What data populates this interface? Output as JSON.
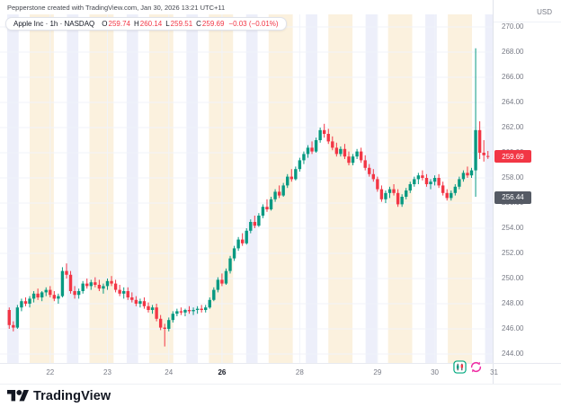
{
  "header": {
    "attribution": "Pepperstone created with TradingView.com, Jan 30, 2026 13:21 UTC+11"
  },
  "legend": {
    "title": "Apple Inc · 1h · NASDAQ",
    "ohlc": [
      {
        "label": "O",
        "value": "259.74"
      },
      {
        "label": "H",
        "value": "260.14"
      },
      {
        "label": "L",
        "value": "259.51"
      },
      {
        "label": "C",
        "value": "259.69"
      }
    ],
    "change": "−0.03 (−0.01%)"
  },
  "price_axis": {
    "currency": "USD",
    "labels": [
      "270.00",
      "268.00",
      "266.00",
      "264.00",
      "262.00",
      "260.00",
      "258.00",
      "256.00",
      "254.00",
      "252.00",
      "250.00",
      "248.00",
      "246.00",
      "244.00"
    ],
    "last_price_badge": {
      "text": "259.69",
      "bg": "#f23645"
    },
    "secondary_badge": {
      "text": "256.44",
      "bg": "#555a64"
    }
  },
  "time_axis": {
    "labels": [
      {
        "text": "22",
        "bar": 10
      },
      {
        "text": "23",
        "bar": 24
      },
      {
        "text": "24",
        "bar": 39
      },
      {
        "text": "26",
        "bar": 52,
        "bold": true
      },
      {
        "text": "28",
        "bar": 71
      },
      {
        "text": "29",
        "bar": 90
      },
      {
        "text": "30",
        "bar": 104
      },
      {
        "text": "31",
        "bar": 118.5
      }
    ]
  },
  "footer": {
    "brand": "TradingView"
  },
  "icons": {
    "logo": "tradingview-logo",
    "left_button": "candlestick-chart-icon",
    "right_button": "refresh-icon"
  },
  "chart_data": {
    "type": "candlestick",
    "symbol": "Apple Inc",
    "exchange": "NASDAQ",
    "interval": "1h",
    "currency": "USD",
    "title": "Apple Inc · 1h · NASDAQ",
    "last_close": 259.69,
    "change": "−0.03 (−0.01%)",
    "y_axis": {
      "min": 244,
      "max": 270,
      "step": 2
    },
    "colors": {
      "up": "#089981",
      "down": "#f23645",
      "grid": "#f0f3fa"
    },
    "sessions": {
      "count": 9,
      "period": 14.6,
      "bands": [
        {
          "name": "premarket",
          "offset": 0,
          "width": 2.8,
          "color": "#edeffa"
        },
        {
          "name": "postmarket",
          "offset": 5.5,
          "width": 5.9,
          "color": "#fbf1de"
        }
      ]
    },
    "candles": [
      [
        247.5,
        247.7,
        246.0,
        246.3
      ],
      [
        246.3,
        246.6,
        245.8,
        246.1
      ],
      [
        246.1,
        247.9,
        246.0,
        247.7
      ],
      [
        247.7,
        248.4,
        247.4,
        248.2
      ],
      [
        248.2,
        248.5,
        247.8,
        248.0
      ],
      [
        248.0,
        248.6,
        247.7,
        248.4
      ],
      [
        248.4,
        249.0,
        248.1,
        248.8
      ],
      [
        248.8,
        249.2,
        248.3,
        248.5
      ],
      [
        248.5,
        249.0,
        248.2,
        248.9
      ],
      [
        248.9,
        249.3,
        248.6,
        249.1
      ],
      [
        249.1,
        249.4,
        248.5,
        248.7
      ],
      [
        248.7,
        249.0,
        248.2,
        248.4
      ],
      [
        248.4,
        248.8,
        248.0,
        248.6
      ],
      [
        248.6,
        250.9,
        248.5,
        250.6
      ],
      [
        250.6,
        251.2,
        250.0,
        250.3
      ],
      [
        250.3,
        250.6,
        248.8,
        249.0
      ],
      [
        249.0,
        249.4,
        248.4,
        248.7
      ],
      [
        248.7,
        249.2,
        248.4,
        249.0
      ],
      [
        249.0,
        249.8,
        248.8,
        249.6
      ],
      [
        249.6,
        250.0,
        249.2,
        249.4
      ],
      [
        249.4,
        249.9,
        249.1,
        249.7
      ],
      [
        249.7,
        250.1,
        249.3,
        249.5
      ],
      [
        249.5,
        249.9,
        249.0,
        249.2
      ],
      [
        249.2,
        249.6,
        248.8,
        249.4
      ],
      [
        249.4,
        250.0,
        249.1,
        249.8
      ],
      [
        249.8,
        250.2,
        249.4,
        249.6
      ],
      [
        249.6,
        249.9,
        248.9,
        249.1
      ],
      [
        249.1,
        249.5,
        248.6,
        248.8
      ],
      [
        248.8,
        249.3,
        248.4,
        249.0
      ],
      [
        249.0,
        249.3,
        248.3,
        248.5
      ],
      [
        248.5,
        248.9,
        248.1,
        248.3
      ],
      [
        248.3,
        248.6,
        247.8,
        248.0
      ],
      [
        248.0,
        248.4,
        247.7,
        248.2
      ],
      [
        248.2,
        248.5,
        247.6,
        247.8
      ],
      [
        247.8,
        248.1,
        247.3,
        247.5
      ],
      [
        247.5,
        247.9,
        247.2,
        247.7
      ],
      [
        247.7,
        248.0,
        246.6,
        246.8
      ],
      [
        246.8,
        247.1,
        245.9,
        246.1
      ],
      [
        246.1,
        246.4,
        244.6,
        246.0
      ],
      [
        246.0,
        246.9,
        245.8,
        246.7
      ],
      [
        246.7,
        247.4,
        246.5,
        247.2
      ],
      [
        247.2,
        247.6,
        247.0,
        247.4
      ],
      [
        247.4,
        247.7,
        247.1,
        247.3
      ],
      [
        247.3,
        247.6,
        247.0,
        247.5
      ],
      [
        247.5,
        247.8,
        247.2,
        247.4
      ],
      [
        247.4,
        247.7,
        247.1,
        247.5
      ],
      [
        247.5,
        247.8,
        247.2,
        247.6
      ],
      [
        247.6,
        247.9,
        247.3,
        247.5
      ],
      [
        247.5,
        247.9,
        247.3,
        247.7
      ],
      [
        247.7,
        248.5,
        247.6,
        248.3
      ],
      [
        248.3,
        249.3,
        248.2,
        249.1
      ],
      [
        249.1,
        250.1,
        248.9,
        249.9
      ],
      [
        249.9,
        250.4,
        249.4,
        249.6
      ],
      [
        249.6,
        250.8,
        249.5,
        250.6
      ],
      [
        250.6,
        251.8,
        250.4,
        251.6
      ],
      [
        251.6,
        252.6,
        251.4,
        252.4
      ],
      [
        252.4,
        253.3,
        252.2,
        253.1
      ],
      [
        253.1,
        253.6,
        252.6,
        252.8
      ],
      [
        252.8,
        254.0,
        252.7,
        253.8
      ],
      [
        253.8,
        254.7,
        253.6,
        254.5
      ],
      [
        254.5,
        255.0,
        254.0,
        254.2
      ],
      [
        254.2,
        255.2,
        254.1,
        255.0
      ],
      [
        255.0,
        255.9,
        254.8,
        255.7
      ],
      [
        255.7,
        256.3,
        255.3,
        255.5
      ],
      [
        255.5,
        256.5,
        255.4,
        256.3
      ],
      [
        256.3,
        257.1,
        256.1,
        256.9
      ],
      [
        256.9,
        257.4,
        256.4,
        256.6
      ],
      [
        256.6,
        257.6,
        256.5,
        257.4
      ],
      [
        257.4,
        258.3,
        257.2,
        258.1
      ],
      [
        258.1,
        258.7,
        257.7,
        257.9
      ],
      [
        257.9,
        258.9,
        257.8,
        258.7
      ],
      [
        258.7,
        259.6,
        258.5,
        259.4
      ],
      [
        259.4,
        260.1,
        259.1,
        259.9
      ],
      [
        259.9,
        260.6,
        259.6,
        260.4
      ],
      [
        260.4,
        260.9,
        259.9,
        260.1
      ],
      [
        260.1,
        261.2,
        260.0,
        261.0
      ],
      [
        261.0,
        262.0,
        260.8,
        261.8
      ],
      [
        261.8,
        262.3,
        261.2,
        261.5
      ],
      [
        261.5,
        261.9,
        260.7,
        260.9
      ],
      [
        260.9,
        261.3,
        260.2,
        260.4
      ],
      [
        260.4,
        260.8,
        259.7,
        259.9
      ],
      [
        259.9,
        260.5,
        259.7,
        260.3
      ],
      [
        260.3,
        260.7,
        259.5,
        259.7
      ],
      [
        259.7,
        260.1,
        259.0,
        259.2
      ],
      [
        259.2,
        259.9,
        259.0,
        259.7
      ],
      [
        259.7,
        260.3,
        259.5,
        260.1
      ],
      [
        260.1,
        260.4,
        259.2,
        259.4
      ],
      [
        259.4,
        259.8,
        258.6,
        258.8
      ],
      [
        258.8,
        259.1,
        258.1,
        258.3
      ],
      [
        258.3,
        258.7,
        257.7,
        257.9
      ],
      [
        257.9,
        258.1,
        256.9,
        257.1
      ],
      [
        257.1,
        257.4,
        256.1,
        256.3
      ],
      [
        256.3,
        257.0,
        256.0,
        256.8
      ],
      [
        256.8,
        257.3,
        256.4,
        257.1
      ],
      [
        257.1,
        257.5,
        256.6,
        256.8
      ],
      [
        256.8,
        257.1,
        255.7,
        255.9
      ],
      [
        255.9,
        256.7,
        255.7,
        256.5
      ],
      [
        256.5,
        257.2,
        256.3,
        257.0
      ],
      [
        257.0,
        257.7,
        256.8,
        257.5
      ],
      [
        257.5,
        258.1,
        257.3,
        257.9
      ],
      [
        257.9,
        258.4,
        257.5,
        258.2
      ],
      [
        258.2,
        258.6,
        257.8,
        258.0
      ],
      [
        258.0,
        258.3,
        257.3,
        257.5
      ],
      [
        257.5,
        257.9,
        257.1,
        257.7
      ],
      [
        257.7,
        258.2,
        257.4,
        258.0
      ],
      [
        258.0,
        258.3,
        257.2,
        257.4
      ],
      [
        257.4,
        257.7,
        256.6,
        256.8
      ],
      [
        256.8,
        257.1,
        256.2,
        256.4
      ],
      [
        256.4,
        257.0,
        256.2,
        256.8
      ],
      [
        256.8,
        257.5,
        256.6,
        257.3
      ],
      [
        257.3,
        258.1,
        257.1,
        257.9
      ],
      [
        257.9,
        258.6,
        257.7,
        258.4
      ],
      [
        258.4,
        258.9,
        258.0,
        258.2
      ],
      [
        258.2,
        258.8,
        258.0,
        258.6
      ],
      [
        258.6,
        268.3,
        256.5,
        261.8
      ],
      [
        261.8,
        262.5,
        259.5,
        260.0
      ],
      [
        260.0,
        261.0,
        259.3,
        259.8
      ],
      [
        259.74,
        260.14,
        259.51,
        259.69
      ]
    ]
  }
}
